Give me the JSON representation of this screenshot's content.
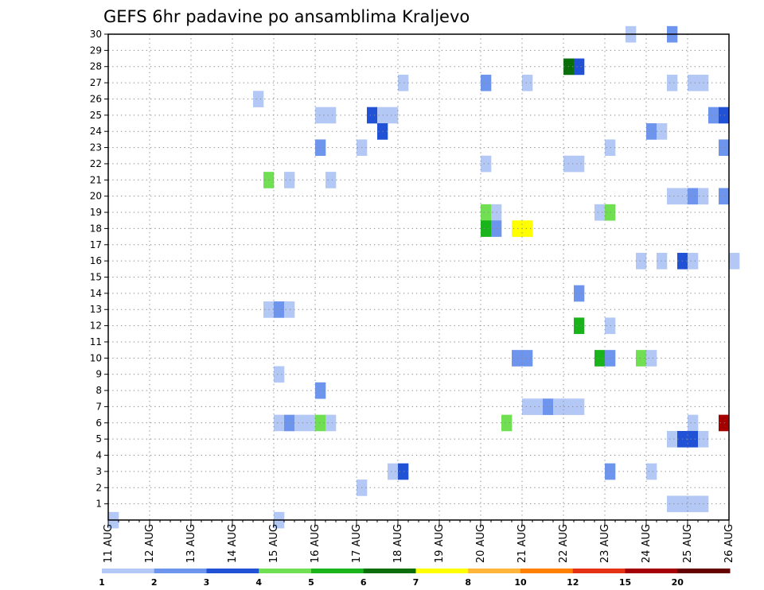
{
  "chart_data": {
    "type": "heatmap",
    "title": "GEFS 6hr padavine po ansamblima Kraljevo",
    "x_labels": [
      "11 AUG",
      "12 AUG",
      "13 AUG",
      "14 AUG",
      "15 AUG",
      "16 AUG",
      "17 AUG",
      "18 AUG",
      "19 AUG",
      "20 AUG",
      "21 AUG",
      "22 AUG",
      "23 AUG",
      "24 AUG",
      "25 AUG",
      "26 AUG"
    ],
    "y_labels": [
      "1",
      "2",
      "3",
      "4",
      "5",
      "6",
      "7",
      "8",
      "9",
      "10",
      "11",
      "12",
      "13",
      "14",
      "15",
      "16",
      "17",
      "18",
      "19",
      "20",
      "21",
      "22",
      "23",
      "24",
      "25",
      "26",
      "27",
      "28",
      "29",
      "30"
    ],
    "x_unit": "6-hour steps from 11 AUG 00Z",
    "ylim": [
      0,
      30
    ],
    "grid": true,
    "legend": {
      "placement": "bottom",
      "colors": [
        "#b4c8f5",
        "#6e95ee",
        "#2152d6",
        "#70e052",
        "#19b419",
        "#0a6e0a",
        "#ffff00",
        "#ffb43c",
        "#ff8000",
        "#e63214",
        "#a50000",
        "#640000"
      ],
      "labels": [
        "1",
        "2",
        "3",
        "4",
        "5",
        "6",
        "7",
        "8",
        "10",
        "12",
        "15",
        "20"
      ]
    },
    "cells": [
      {
        "x": 50.5,
        "y": 30,
        "v": 1
      },
      {
        "x": 54.5,
        "y": 30,
        "v": 2
      },
      {
        "x": 0.5,
        "y": 0,
        "v": 1
      },
      {
        "x": 44.5,
        "y": 28,
        "v": 6
      },
      {
        "x": 45.5,
        "y": 28,
        "v": 3
      },
      {
        "x": 28.5,
        "y": 27,
        "v": 1
      },
      {
        "x": 36.5,
        "y": 27,
        "v": 2
      },
      {
        "x": 40.5,
        "y": 27,
        "v": 1
      },
      {
        "x": 54.5,
        "y": 27,
        "v": 1
      },
      {
        "x": 56.5,
        "y": 27,
        "v": 1
      },
      {
        "x": 57.5,
        "y": 27,
        "v": 1
      },
      {
        "x": 14.5,
        "y": 26,
        "v": 1
      },
      {
        "x": 20.5,
        "y": 25,
        "v": 1
      },
      {
        "x": 21.5,
        "y": 25,
        "v": 1
      },
      {
        "x": 25.5,
        "y": 25,
        "v": 3
      },
      {
        "x": 26.5,
        "y": 25,
        "v": 1
      },
      {
        "x": 27.5,
        "y": 25,
        "v": 1
      },
      {
        "x": 58.5,
        "y": 25,
        "v": 2
      },
      {
        "x": 59.5,
        "y": 25,
        "v": 3
      },
      {
        "x": 26.5,
        "y": 24,
        "v": 3
      },
      {
        "x": 52.5,
        "y": 24,
        "v": 2
      },
      {
        "x": 53.5,
        "y": 24,
        "v": 1
      },
      {
        "x": 20.5,
        "y": 23,
        "v": 2
      },
      {
        "x": 24.5,
        "y": 23,
        "v": 1
      },
      {
        "x": 48.5,
        "y": 23,
        "v": 1
      },
      {
        "x": 59.5,
        "y": 23,
        "v": 2
      },
      {
        "x": 36.5,
        "y": 22,
        "v": 1
      },
      {
        "x": 44.5,
        "y": 22,
        "v": 1
      },
      {
        "x": 45.5,
        "y": 22,
        "v": 1
      },
      {
        "x": 15.5,
        "y": 21,
        "v": 4
      },
      {
        "x": 17.5,
        "y": 21,
        "v": 1
      },
      {
        "x": 21.5,
        "y": 21,
        "v": 1
      },
      {
        "x": 54.5,
        "y": 20,
        "v": 1
      },
      {
        "x": 55.5,
        "y": 20,
        "v": 1
      },
      {
        "x": 56.5,
        "y": 20,
        "v": 2
      },
      {
        "x": 57.5,
        "y": 20,
        "v": 1
      },
      {
        "x": 59.5,
        "y": 20,
        "v": 2
      },
      {
        "x": 36.5,
        "y": 19,
        "v": 4
      },
      {
        "x": 37.5,
        "y": 19,
        "v": 1
      },
      {
        "x": 47.5,
        "y": 19,
        "v": 1
      },
      {
        "x": 48.5,
        "y": 19,
        "v": 4
      },
      {
        "x": 36.5,
        "y": 18,
        "v": 5
      },
      {
        "x": 37.5,
        "y": 18,
        "v": 2
      },
      {
        "x": 39.5,
        "y": 18,
        "v": 7
      },
      {
        "x": 40.5,
        "y": 18,
        "v": 7
      },
      {
        "x": 51.5,
        "y": 16,
        "v": 1
      },
      {
        "x": 53.5,
        "y": 16,
        "v": 1
      },
      {
        "x": 55.5,
        "y": 16,
        "v": 3
      },
      {
        "x": 56.5,
        "y": 16,
        "v": 1
      },
      {
        "x": 60.5,
        "y": 16,
        "v": 1
      },
      {
        "x": 45.5,
        "y": 14,
        "v": 2
      },
      {
        "x": 15.5,
        "y": 13,
        "v": 1
      },
      {
        "x": 16.5,
        "y": 13,
        "v": 2
      },
      {
        "x": 17.5,
        "y": 13,
        "v": 1
      },
      {
        "x": 45.5,
        "y": 12,
        "v": 5
      },
      {
        "x": 48.5,
        "y": 12,
        "v": 1
      },
      {
        "x": 39.5,
        "y": 10,
        "v": 2
      },
      {
        "x": 40.5,
        "y": 10,
        "v": 2
      },
      {
        "x": 47.5,
        "y": 10,
        "v": 5
      },
      {
        "x": 48.5,
        "y": 10,
        "v": 2
      },
      {
        "x": 51.5,
        "y": 10,
        "v": 4
      },
      {
        "x": 52.5,
        "y": 10,
        "v": 1
      },
      {
        "x": 16.5,
        "y": 9,
        "v": 1
      },
      {
        "x": 20.5,
        "y": 8,
        "v": 2
      },
      {
        "x": 40.5,
        "y": 7,
        "v": 1
      },
      {
        "x": 41.5,
        "y": 7,
        "v": 1
      },
      {
        "x": 42.5,
        "y": 7,
        "v": 2
      },
      {
        "x": 43.5,
        "y": 7,
        "v": 1
      },
      {
        "x": 44.5,
        "y": 7,
        "v": 1
      },
      {
        "x": 45.5,
        "y": 7,
        "v": 1
      },
      {
        "x": 16.5,
        "y": 6,
        "v": 1
      },
      {
        "x": 17.5,
        "y": 6,
        "v": 2
      },
      {
        "x": 18.5,
        "y": 6,
        "v": 1
      },
      {
        "x": 19.5,
        "y": 6,
        "v": 1
      },
      {
        "x": 20.5,
        "y": 6,
        "v": 4
      },
      {
        "x": 21.5,
        "y": 6,
        "v": 1
      },
      {
        "x": 38.5,
        "y": 6,
        "v": 4
      },
      {
        "x": 56.5,
        "y": 6,
        "v": 1
      },
      {
        "x": 59.5,
        "y": 6,
        "v": 15
      },
      {
        "x": 54.5,
        "y": 5,
        "v": 1
      },
      {
        "x": 55.5,
        "y": 5,
        "v": 3
      },
      {
        "x": 56.5,
        "y": 5,
        "v": 3
      },
      {
        "x": 57.5,
        "y": 5,
        "v": 1
      },
      {
        "x": 27.5,
        "y": 3,
        "v": 1
      },
      {
        "x": 28.5,
        "y": 3,
        "v": 3
      },
      {
        "x": 48.5,
        "y": 3,
        "v": 2
      },
      {
        "x": 52.5,
        "y": 3,
        "v": 1
      },
      {
        "x": 24.5,
        "y": 2,
        "v": 1
      },
      {
        "x": 54.5,
        "y": 1,
        "v": 1
      },
      {
        "x": 55.5,
        "y": 1,
        "v": 1
      },
      {
        "x": 56.5,
        "y": 1,
        "v": 1
      },
      {
        "x": 57.5,
        "y": 1,
        "v": 1
      },
      {
        "x": 16.5,
        "y": 0,
        "v": 1
      }
    ]
  }
}
